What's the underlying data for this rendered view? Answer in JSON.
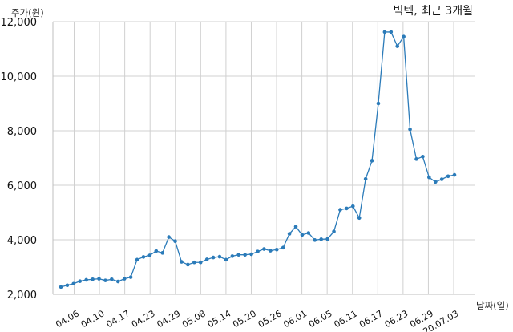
{
  "chart_data": {
    "type": "line",
    "title": "빅텍, 최근 3개월",
    "xlabel": "날짜(일)",
    "ylabel": "주가(원)",
    "ylim": [
      2000,
      12000
    ],
    "yticks": [
      "2,000",
      "4,000",
      "6,000",
      "8,000",
      "10,000",
      "12,000"
    ],
    "ytick_values": [
      2000,
      4000,
      6000,
      8000,
      10000,
      12000
    ],
    "xticks": [
      "04.06",
      "04.10",
      "04.17",
      "04.23",
      "04.29",
      "05.08",
      "05.14",
      "05.20",
      "05.26",
      "06.01",
      "06.05",
      "06.11",
      "06.17",
      "06.23",
      "06.29",
      "20.07.03"
    ],
    "grid": true,
    "color": "#2b7bb9",
    "series": [
      {
        "values": [
          2270,
          2330,
          2390,
          2480,
          2530,
          2550,
          2570,
          2510,
          2550,
          2470,
          2570,
          2630,
          3270,
          3370,
          3430,
          3590,
          3520,
          4100,
          3950,
          3190,
          3090,
          3170,
          3170,
          3280,
          3350,
          3380,
          3270,
          3400,
          3450,
          3450,
          3470,
          3570,
          3660,
          3600,
          3640,
          3710,
          4220,
          4480,
          4180,
          4250,
          3990,
          4020,
          4030,
          4300,
          5100,
          5150,
          5230,
          4800,
          6230,
          6900,
          9000,
          11620,
          11620,
          11100,
          11450,
          8050,
          6960,
          7050,
          6290,
          6120,
          6220,
          6330,
          6380
        ]
      }
    ]
  }
}
